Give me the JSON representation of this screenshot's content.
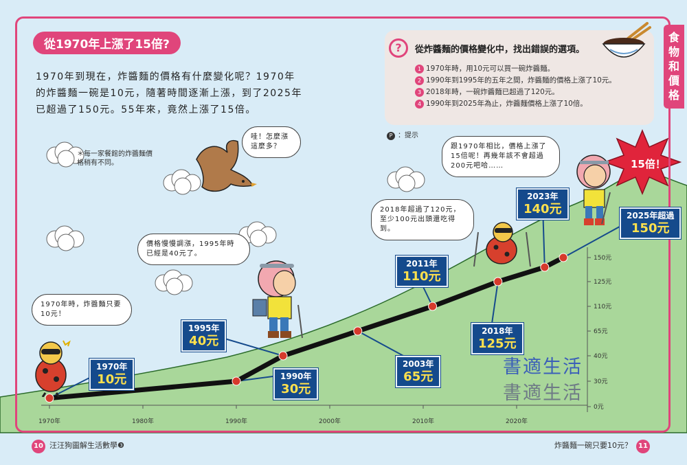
{
  "header": {
    "title": "從1970年上漲了15倍?",
    "intro": "1970年到現在，炸醬麵的價格有什麼變化呢？1970年的炸醬麵一碗是10元，隨著時間逐漸上漲，到了2025年已超過了150元。55年來，竟然上漲了15倍。",
    "note": "＊每一家餐館的炸醬麵價格稍有不同。",
    "side_tab": "食物和價格"
  },
  "quiz": {
    "mark": "?",
    "question": "從炸醬麵的價格變化中，找出錯誤的選項。",
    "options": [
      {
        "num": "1",
        "text": "1970年時，用10元可以買一碗炸醬麵。"
      },
      {
        "num": "2",
        "text": "1990年到1995年的五年之間，炸醬麵的價格上漲了10元。"
      },
      {
        "num": "3",
        "text": "2018年時，一碗炸醬麵已超過了120元。"
      },
      {
        "num": "4",
        "text": "1990年到2025年為止，炸醬麵價格上漲了10倍。"
      }
    ],
    "hint_icon": "P",
    "hint_text": "：提示"
  },
  "bubbles": {
    "b1970": "1970年時，炸醬麵只要10元！",
    "b1995": "價格慢慢調漲，1995年時已經是40元了。",
    "bird": "哇！怎麼漲這麼多？",
    "b2018": "2018年超過了120元，至少100元出頭還吃得到。",
    "b2023": "跟1970年相比，價格上漲了15倍呢！再幾年該不會超過200元吧哈……"
  },
  "burst": "15倍！",
  "chart_data": {
    "type": "line",
    "x_label": "",
    "y_label": "",
    "x_ticks": [
      "1970年",
      "1980年",
      "1990年",
      "2000年",
      "2010年",
      "2020年"
    ],
    "x_tick_values": [
      1970,
      1980,
      1990,
      2000,
      2010,
      2020
    ],
    "y_ticks": [
      "0元",
      "30元",
      "40元",
      "65元",
      "110元",
      "125元",
      "150元"
    ],
    "y_tick_values": [
      0,
      30,
      40,
      65,
      110,
      125,
      150
    ],
    "xlim": [
      1970,
      2025
    ],
    "grid": false,
    "points": [
      {
        "x": 1970,
        "y": 10
      },
      {
        "x": 1990,
        "y": 30
      },
      {
        "x": 1995,
        "y": 40
      },
      {
        "x": 2003,
        "y": 65
      },
      {
        "x": 2011,
        "y": 110
      },
      {
        "x": 2018,
        "y": 125
      },
      {
        "x": 2023,
        "y": 140
      },
      {
        "x": 2025,
        "y": 150
      }
    ],
    "callouts": [
      {
        "year": "1970年",
        "price": "10元"
      },
      {
        "year": "1990年",
        "price": "30元"
      },
      {
        "year": "1995年",
        "price": "40元"
      },
      {
        "year": "2003年",
        "price": "65元"
      },
      {
        "year": "2011年",
        "price": "110元"
      },
      {
        "year": "2018年",
        "price": "125元"
      },
      {
        "year": "2023年",
        "price": "140元"
      },
      {
        "year": "2025年超過",
        "price": "150元"
      }
    ],
    "colors": {
      "line": "#111111",
      "marker": "#d63a2c",
      "hill": "#a9d79a",
      "callout": "#154a8c",
      "price": "#ffe14d"
    }
  },
  "footer": {
    "left_page": "10",
    "left_text": "汪汪狗圖解生活數學❸",
    "right_text": "炸醬麵一碗只要10元？",
    "right_page": "11"
  },
  "watermark": "書適生活"
}
